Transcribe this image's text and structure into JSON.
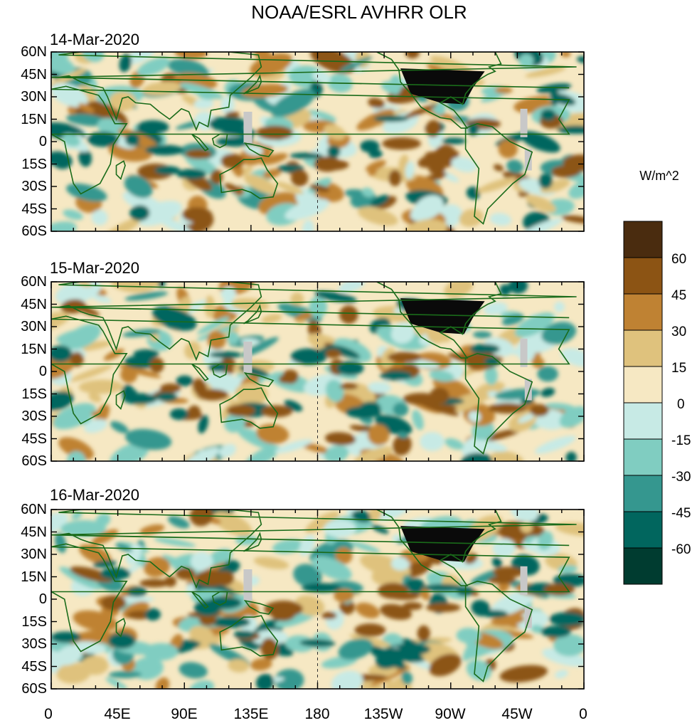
{
  "title": "NOAA/ESRL AVHRR OLR",
  "units": "W/m^2",
  "panels": [
    {
      "date": "14-Mar-2020"
    },
    {
      "date": "15-Mar-2020"
    },
    {
      "date": "16-Mar-2020"
    }
  ],
  "lat_labels": [
    "60N",
    "45N",
    "30N",
    "15N",
    "0",
    "15S",
    "30S",
    "45S",
    "60S"
  ],
  "lon_labels": [
    "0",
    "45E",
    "90E",
    "135E",
    "180",
    "135W",
    "90W",
    "45W",
    "0"
  ],
  "colorbar": {
    "labels": [
      "60",
      "45",
      "30",
      "15",
      "0",
      "-15",
      "-30",
      "-45",
      "-60"
    ],
    "levels_desc": [
      "#4a2c0f",
      "#8c5414",
      "#bf8233",
      "#dfc27d",
      "#f6e8c3",
      "#c7eae5",
      "#80cdc1",
      "#35978f",
      "#01665e",
      "#003c30"
    ]
  }
}
